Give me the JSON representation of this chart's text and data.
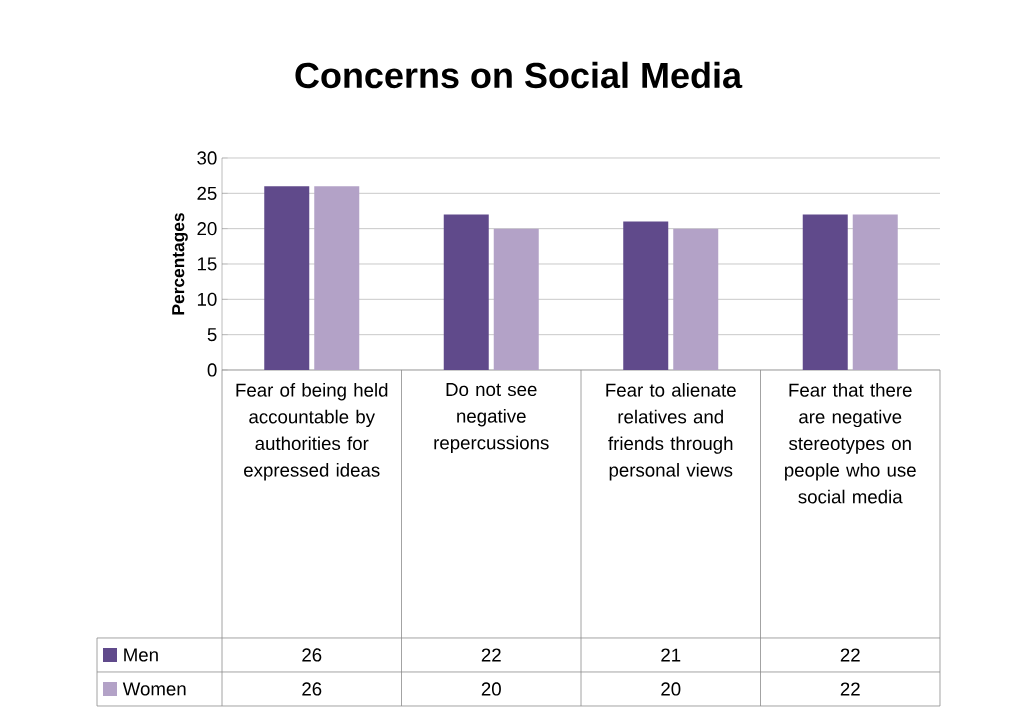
{
  "chart_data": {
    "type": "bar",
    "title": "Concerns on Social Media",
    "ylabel": "Percentages",
    "categories": [
      "Fear of being held accountable by authorities for expressed ideas",
      "Do not see negative repercussions",
      "Fear to alienate relatives and friends through personal views",
      "Fear that there are negative stereotypes on people who use social media"
    ],
    "series": [
      {
        "name": "Men",
        "color": "#604a8b",
        "values": [
          26,
          22,
          21,
          22
        ]
      },
      {
        "name": "Women",
        "color": "#b3a2c7",
        "values": [
          26,
          20,
          20,
          22
        ]
      }
    ],
    "ylim": [
      0,
      30
    ],
    "yticks": [
      0,
      5,
      10,
      15,
      20,
      25,
      30
    ],
    "grid": "y",
    "legend": "bottom",
    "data_labels": true
  }
}
